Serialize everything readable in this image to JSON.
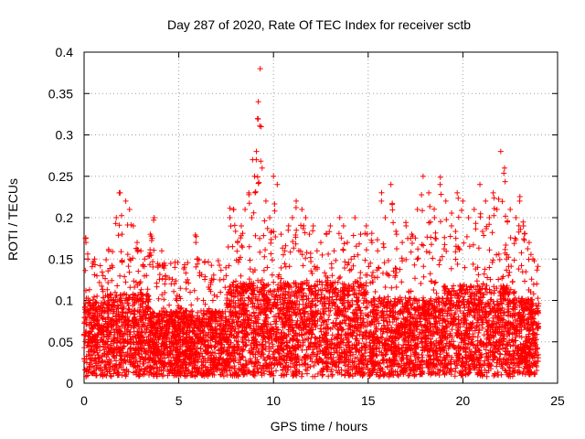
{
  "chart_data": {
    "type": "scatter",
    "title": "Day 287 of 2020, Rate Of TEC Index for receiver sctb",
    "xlabel": "GPS time / hours",
    "ylabel": "ROTI / TECUs",
    "xlim": [
      0,
      25
    ],
    "ylim": [
      0,
      0.4
    ],
    "xticks": [
      0,
      5,
      10,
      15,
      20,
      25
    ],
    "xtick_labels": [
      "0",
      "5",
      "10",
      "15",
      "20",
      "25"
    ],
    "yticks": [
      0,
      0.05,
      0.1,
      0.15,
      0.2,
      0.25,
      0.3,
      0.35,
      0.4
    ],
    "ytick_labels": [
      "0",
      "0.05",
      "0.1",
      "0.15",
      "0.2",
      "0.25",
      "0.3",
      "0.35",
      "0.4"
    ],
    "grid": true,
    "marker": "plus",
    "color": "#ff0000",
    "series": [
      {
        "name": "ROTI",
        "x": [
          0.1,
          0.2,
          0.25,
          0.3,
          0.5,
          0.8,
          1.0,
          1.3,
          1.5,
          1.7,
          1.9,
          2.0,
          2.2,
          2.4,
          2.6,
          2.8,
          3.0,
          3.2,
          3.5,
          3.7,
          3.9,
          4.1,
          4.3,
          4.6,
          4.9,
          5.1,
          5.3,
          5.6,
          5.9,
          6.1,
          6.3,
          6.6,
          6.9,
          7.2,
          7.5,
          7.7,
          7.9,
          8.1,
          8.3,
          8.5,
          8.7,
          8.9,
          9.0,
          9.1,
          9.2,
          9.3,
          9.35,
          9.4,
          9.6,
          9.8,
          10.0,
          10.2,
          10.4,
          10.6,
          10.8,
          11.0,
          11.2,
          11.5,
          11.7,
          11.9,
          12.1,
          12.3,
          12.5,
          12.8,
          13.0,
          13.2,
          13.5,
          13.7,
          13.9,
          14.1,
          14.3,
          14.6,
          14.9,
          15.2,
          15.5,
          15.7,
          15.9,
          16.2,
          16.5,
          16.8,
          17.0,
          17.3,
          17.6,
          17.9,
          18.2,
          18.5,
          18.8,
          19.1,
          19.4,
          19.7,
          20.0,
          20.3,
          20.6,
          20.9,
          21.2,
          21.4,
          21.6,
          21.8,
          22.0,
          22.2,
          22.5,
          22.8,
          23.0,
          23.2,
          23.5,
          23.7,
          23.9
        ],
        "y": [
          0.17,
          0.15,
          0.06,
          0.1,
          0.08,
          0.07,
          0.13,
          0.16,
          0.14,
          0.2,
          0.23,
          0.18,
          0.22,
          0.21,
          0.19,
          0.17,
          0.16,
          0.15,
          0.18,
          0.2,
          0.14,
          0.16,
          0.13,
          0.12,
          0.1,
          0.09,
          0.14,
          0.11,
          0.17,
          0.13,
          0.1,
          0.09,
          0.08,
          0.11,
          0.13,
          0.2,
          0.21,
          0.17,
          0.19,
          0.21,
          0.23,
          0.27,
          0.25,
          0.28,
          0.34,
          0.38,
          0.31,
          0.26,
          0.22,
          0.2,
          0.25,
          0.24,
          0.18,
          0.16,
          0.19,
          0.2,
          0.22,
          0.21,
          0.2,
          0.18,
          0.19,
          0.16,
          0.17,
          0.18,
          0.19,
          0.16,
          0.2,
          0.19,
          0.17,
          0.15,
          0.2,
          0.18,
          0.19,
          0.17,
          0.16,
          0.22,
          0.2,
          0.24,
          0.18,
          0.17,
          0.19,
          0.18,
          0.21,
          0.25,
          0.23,
          0.2,
          0.24,
          0.22,
          0.19,
          0.23,
          0.22,
          0.2,
          0.21,
          0.24,
          0.22,
          0.2,
          0.23,
          0.21,
          0.28,
          0.26,
          0.21,
          0.2,
          0.22,
          0.19,
          0.17,
          0.15,
          0.12
        ]
      }
    ],
    "notes": "Dense scatter: thousands of '+' markers, mostly between 0.01 and 0.13 TECU, with spikes listed above."
  }
}
